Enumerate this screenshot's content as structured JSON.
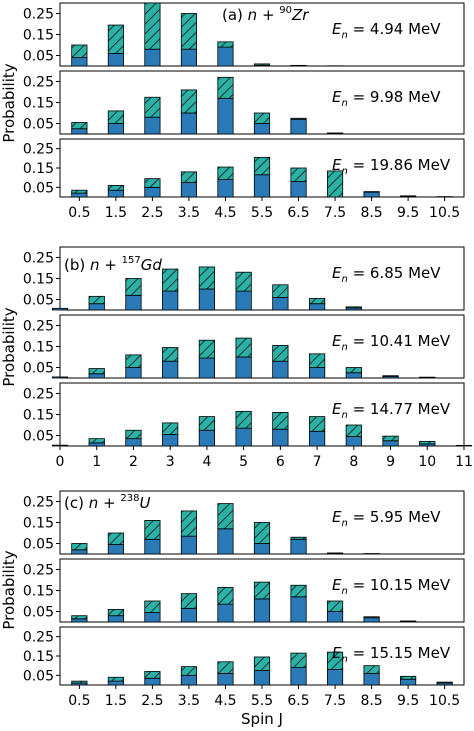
{
  "figure": {
    "ylabel": "Probability",
    "xlabel": "Spin J",
    "colors": {
      "solid": "#2a7ab8",
      "hatch_fill": "#2bb2a6",
      "hatch_line": "#1a3a3a",
      "edge": "#000000"
    }
  },
  "groups": [
    {
      "id": "a",
      "title_pre": "(a) ",
      "title_n": "n",
      "title_plus": " + ",
      "title_mass": "90",
      "title_element": "Zr"
    },
    {
      "id": "b",
      "title_pre": "(b) ",
      "title_n": "n",
      "title_plus": " + ",
      "title_mass": "157",
      "title_element": "Gd"
    },
    {
      "id": "c",
      "title_pre": "(c) ",
      "title_n": "n",
      "title_plus": " + ",
      "title_mass": "238",
      "title_element": "U"
    }
  ],
  "chart_data": [
    {
      "type": "bar",
      "stacked": true,
      "group": "a",
      "energy_sym": "E",
      "energy_sub": "n",
      "energy_value": " = 4.94 MeV",
      "x": [
        0.5,
        1.5,
        2.5,
        3.5,
        4.5,
        5.5,
        6.5,
        7.5,
        8.5,
        9.5,
        10.5
      ],
      "series": [
        {
          "values": [
            0.04,
            0.06,
            0.08,
            0.08,
            0.09,
            0.004,
            0.001,
            0.0,
            0.0,
            0.0,
            0.0
          ]
        },
        {
          "values": [
            0.06,
            0.135,
            0.22,
            0.17,
            0.025,
            0.006,
            0.002,
            0.001,
            0.0,
            0.0,
            0.0
          ]
        }
      ],
      "yticks": [
        0.05,
        0.15,
        0.25
      ],
      "ytick_labels": [
        "0.05",
        "0.15",
        "0.25"
      ],
      "ylim": [
        0,
        0.3
      ]
    },
    {
      "type": "bar",
      "stacked": true,
      "group": "a",
      "energy_sym": "E",
      "energy_sub": "n",
      "energy_value": " = 9.98 MeV",
      "x": [
        0.5,
        1.5,
        2.5,
        3.5,
        4.5,
        5.5,
        6.5,
        7.5,
        8.5,
        9.5,
        10.5
      ],
      "series": [
        {
          "values": [
            0.025,
            0.05,
            0.08,
            0.1,
            0.17,
            0.05,
            0.07,
            0.003,
            0.0,
            0.0,
            0.0
          ]
        },
        {
          "values": [
            0.03,
            0.06,
            0.095,
            0.11,
            0.1,
            0.05,
            0.005,
            0.002,
            0.0,
            0.0,
            0.0
          ]
        }
      ],
      "yticks": [
        0.05,
        0.15,
        0.25
      ],
      "ytick_labels": [
        "0.05",
        "0.15",
        "0.25"
      ],
      "ylim": [
        0,
        0.3
      ]
    },
    {
      "type": "bar",
      "stacked": true,
      "group": "a",
      "energy_sym": "E",
      "energy_sub": "n",
      "energy_value": " = 19.86 MeV",
      "x": [
        0.5,
        1.5,
        2.5,
        3.5,
        4.5,
        5.5,
        6.5,
        7.5,
        8.5,
        9.5,
        10.5
      ],
      "series": [
        {
          "values": [
            0.02,
            0.035,
            0.05,
            0.075,
            0.09,
            0.115,
            0.08,
            0.0,
            0.025,
            0.004,
            0.002
          ]
        },
        {
          "values": [
            0.015,
            0.025,
            0.045,
            0.055,
            0.065,
            0.09,
            0.07,
            0.135,
            0.003,
            0.002,
            0.0
          ]
        }
      ],
      "yticks": [
        0.05,
        0.15,
        0.25
      ],
      "ytick_labels": [
        "0.05",
        "0.15",
        "0.25"
      ],
      "ylim": [
        0,
        0.3
      ],
      "xtick_labels": [
        "0.5",
        "1.5",
        "2.5",
        "3.5",
        "4.5",
        "5.5",
        "6.5",
        "7.5",
        "8.5",
        "9.5",
        "10.5"
      ]
    },
    {
      "type": "bar",
      "stacked": true,
      "group": "b",
      "energy_sym": "E",
      "energy_sub": "n",
      "energy_value": " = 6.85 MeV",
      "x": [
        0,
        1,
        2,
        3,
        4,
        5,
        6,
        7,
        8,
        9,
        10,
        11
      ],
      "series": [
        {
          "values": [
            0.008,
            0.03,
            0.07,
            0.09,
            0.1,
            0.09,
            0.06,
            0.03,
            0.01,
            0.0,
            0.0,
            0.0
          ]
        },
        {
          "values": [
            0.0,
            0.035,
            0.08,
            0.105,
            0.105,
            0.09,
            0.06,
            0.025,
            0.005,
            0.0,
            0.0,
            0.0
          ]
        }
      ],
      "yticks": [
        0.05,
        0.15,
        0.25
      ],
      "ytick_labels": [
        "0.05",
        "0.15",
        "0.25"
      ],
      "ylim": [
        0,
        0.3
      ]
    },
    {
      "type": "bar",
      "stacked": true,
      "group": "b",
      "energy_sym": "E",
      "energy_sub": "n",
      "energy_value": " = 10.41 MeV",
      "x": [
        0,
        1,
        2,
        3,
        4,
        5,
        6,
        7,
        8,
        9,
        10,
        11
      ],
      "series": [
        {
          "values": [
            0.005,
            0.02,
            0.05,
            0.08,
            0.095,
            0.1,
            0.08,
            0.05,
            0.025,
            0.008,
            0.002,
            0.0
          ]
        },
        {
          "values": [
            0.0,
            0.025,
            0.06,
            0.065,
            0.085,
            0.09,
            0.075,
            0.065,
            0.025,
            0.003,
            0.002,
            0.0
          ]
        }
      ],
      "yticks": [
        0.05,
        0.15,
        0.25
      ],
      "ytick_labels": [
        "0.05",
        "0.15",
        "0.25"
      ],
      "ylim": [
        0,
        0.3
      ]
    },
    {
      "type": "bar",
      "stacked": true,
      "group": "b",
      "energy_sym": "E",
      "energy_sub": "n",
      "energy_value": " = 14.77 MeV",
      "x": [
        0,
        1,
        2,
        3,
        4,
        5,
        6,
        7,
        8,
        9,
        10,
        11
      ],
      "series": [
        {
          "values": [
            0.004,
            0.015,
            0.035,
            0.055,
            0.075,
            0.085,
            0.08,
            0.07,
            0.045,
            0.025,
            0.01,
            0.003
          ]
        },
        {
          "values": [
            0.0,
            0.02,
            0.04,
            0.055,
            0.065,
            0.08,
            0.08,
            0.07,
            0.055,
            0.022,
            0.012,
            0.0
          ]
        }
      ],
      "yticks": [
        0.05,
        0.15,
        0.25
      ],
      "ytick_labels": [
        "0.05",
        "0.15",
        "0.25"
      ],
      "ylim": [
        0,
        0.3
      ],
      "xtick_labels": [
        "0",
        "1",
        "2",
        "3",
        "4",
        "5",
        "6",
        "7",
        "8",
        "9",
        "10",
        "11"
      ]
    },
    {
      "type": "bar",
      "stacked": true,
      "group": "c",
      "energy_sym": "E",
      "energy_sub": "n",
      "energy_value": " = 5.95 MeV",
      "x": [
        0.5,
        1.5,
        2.5,
        3.5,
        4.5,
        5.5,
        6.5,
        7.5,
        8.5,
        9.5,
        10.5
      ],
      "series": [
        {
          "values": [
            0.02,
            0.045,
            0.07,
            0.085,
            0.12,
            0.05,
            0.07,
            0.003,
            0.001,
            0.0,
            0.0
          ]
        },
        {
          "values": [
            0.03,
            0.055,
            0.09,
            0.12,
            0.12,
            0.1,
            0.01,
            0.002,
            0.001,
            0.0,
            0.0
          ]
        }
      ],
      "yticks": [
        0.05,
        0.15,
        0.25
      ],
      "ytick_labels": [
        "0.05",
        "0.15",
        "0.25"
      ],
      "ylim": [
        0,
        0.3
      ]
    },
    {
      "type": "bar",
      "stacked": true,
      "group": "c",
      "energy_sym": "E",
      "energy_sub": "n",
      "energy_value": " = 10.15 MeV",
      "x": [
        0.5,
        1.5,
        2.5,
        3.5,
        4.5,
        5.5,
        6.5,
        7.5,
        8.5,
        9.5,
        10.5
      ],
      "series": [
        {
          "values": [
            0.015,
            0.03,
            0.045,
            0.065,
            0.085,
            0.11,
            0.12,
            0.05,
            0.02,
            0.003,
            0.0
          ]
        },
        {
          "values": [
            0.015,
            0.03,
            0.055,
            0.07,
            0.08,
            0.08,
            0.055,
            0.05,
            0.005,
            0.002,
            0.0
          ]
        }
      ],
      "yticks": [
        0.05,
        0.15,
        0.25
      ],
      "ytick_labels": [
        "0.05",
        "0.15",
        "0.25"
      ],
      "ylim": [
        0,
        0.3
      ]
    },
    {
      "type": "bar",
      "stacked": true,
      "group": "c",
      "energy_sym": "E",
      "energy_sub": "n",
      "energy_value": " = 15.15 MeV",
      "x": [
        0.5,
        1.5,
        2.5,
        3.5,
        4.5,
        5.5,
        6.5,
        7.5,
        8.5,
        9.5,
        10.5
      ],
      "series": [
        {
          "values": [
            0.01,
            0.02,
            0.035,
            0.05,
            0.06,
            0.075,
            0.09,
            0.08,
            0.06,
            0.03,
            0.01
          ]
        },
        {
          "values": [
            0.01,
            0.02,
            0.035,
            0.045,
            0.06,
            0.07,
            0.075,
            0.09,
            0.04,
            0.015,
            0.005
          ]
        }
      ],
      "yticks": [
        0.05,
        0.15,
        0.25
      ],
      "ytick_labels": [
        "0.05",
        "0.15",
        "0.25"
      ],
      "ylim": [
        0,
        0.3
      ],
      "xtick_labels": [
        "0.5",
        "1.5",
        "2.5",
        "3.5",
        "4.5",
        "5.5",
        "6.5",
        "7.5",
        "8.5",
        "9.5",
        "10.5"
      ]
    }
  ]
}
